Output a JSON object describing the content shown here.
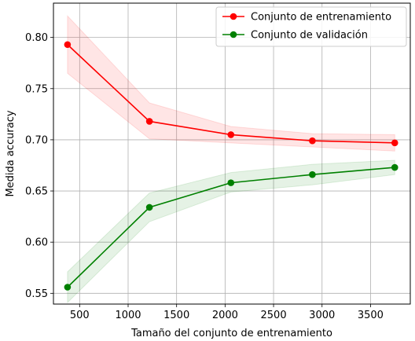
{
  "chart_data": {
    "type": "line",
    "title": "",
    "xlabel": "Tamaño del conjunto de entrenamiento",
    "ylabel": "Medida accuracy",
    "xlim": [
      230,
      3910
    ],
    "ylim": [
      0.5395,
      0.8335
    ],
    "xticks": [
      500,
      1000,
      1500,
      2000,
      2500,
      3000,
      3500
    ],
    "yticks": [
      0.55,
      0.6,
      0.65,
      0.7,
      0.75,
      0.8
    ],
    "grid": true,
    "legend_position": "top-right",
    "x": [
      375,
      1220,
      2060,
      2900,
      3750
    ],
    "series": [
      {
        "name": "Conjunto de entrenamiento",
        "color": "#ff0000",
        "values": [
          0.793,
          0.718,
          0.705,
          0.699,
          0.697
        ],
        "lower": [
          0.765,
          0.701,
          0.697,
          0.693,
          0.689
        ],
        "upper": [
          0.821,
          0.736,
          0.713,
          0.706,
          0.705
        ]
      },
      {
        "name": "Conjunto de validación",
        "color": "#008000",
        "values": [
          0.556,
          0.634,
          0.658,
          0.666,
          0.673
        ],
        "lower": [
          0.541,
          0.62,
          0.649,
          0.656,
          0.666
        ],
        "upper": [
          0.571,
          0.648,
          0.668,
          0.676,
          0.68
        ]
      }
    ]
  }
}
